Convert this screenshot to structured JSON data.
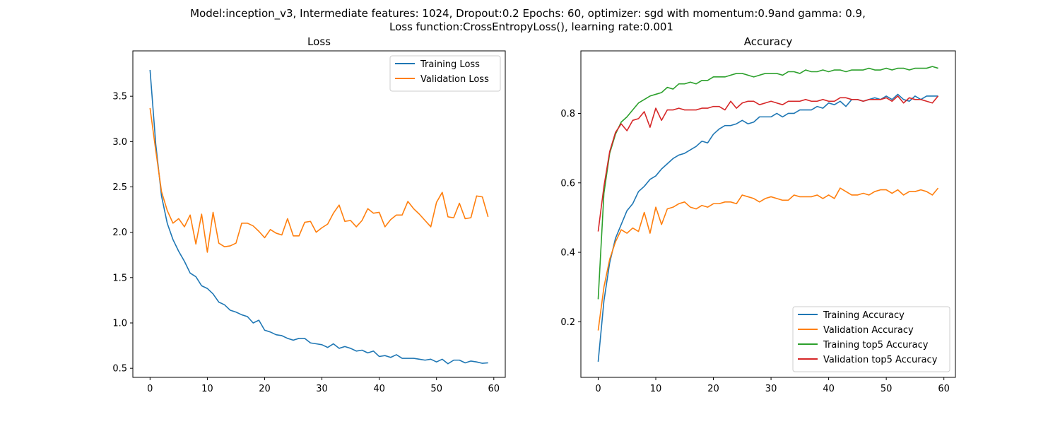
{
  "figure": {
    "suptitle_line1": "Model:inception_v3, Intermediate features: 1024, Dropout:0.2 Epochs: 60, optimizer: sgd with momentum:0.9and gamma: 0.9,",
    "suptitle_line2": "Loss function:CrossEntropyLoss(), learning rate:0.001"
  },
  "colors": {
    "blue": "#1f77b4",
    "orange": "#ff7f0e",
    "green": "#2ca02c",
    "red": "#d62728"
  },
  "chart_data": [
    {
      "type": "line",
      "title": "Loss",
      "xlabel": "",
      "ylabel": "",
      "xlim": [
        -3,
        62
      ],
      "ylim": [
        0.4,
        4.0
      ],
      "xticks": [
        0,
        10,
        20,
        30,
        40,
        50,
        60
      ],
      "yticks": [
        0.5,
        1.0,
        1.5,
        2.0,
        2.5,
        3.0,
        3.5
      ],
      "ytick_labels": [
        "0.5",
        "1.0",
        "1.5",
        "2.0",
        "2.5",
        "3.0",
        "3.5"
      ],
      "grid": false,
      "legend": "upper-right",
      "series": [
        {
          "name": "Training Loss",
          "color": "#1f77b4",
          "values": [
            3.79,
            2.97,
            2.4,
            2.1,
            1.92,
            1.79,
            1.68,
            1.55,
            1.51,
            1.41,
            1.38,
            1.32,
            1.23,
            1.2,
            1.14,
            1.12,
            1.09,
            1.07,
            1.0,
            1.03,
            0.92,
            0.9,
            0.87,
            0.86,
            0.83,
            0.81,
            0.83,
            0.83,
            0.78,
            0.77,
            0.76,
            0.73,
            0.77,
            0.72,
            0.74,
            0.72,
            0.69,
            0.7,
            0.67,
            0.69,
            0.63,
            0.64,
            0.62,
            0.65,
            0.61,
            0.61,
            0.61,
            0.6,
            0.59,
            0.6,
            0.57,
            0.6,
            0.55,
            0.59,
            0.59,
            0.56,
            0.58,
            0.57,
            0.555,
            0.56
          ]
        },
        {
          "name": "Validation Loss",
          "color": "#ff7f0e",
          "values": [
            3.37,
            2.9,
            2.45,
            2.24,
            2.1,
            2.15,
            2.06,
            2.19,
            1.87,
            2.2,
            1.78,
            2.22,
            1.88,
            1.84,
            1.85,
            1.88,
            2.1,
            2.1,
            2.07,
            2.01,
            1.94,
            2.03,
            1.99,
            1.97,
            2.15,
            1.96,
            1.96,
            2.11,
            2.12,
            2.0,
            2.05,
            2.09,
            2.21,
            2.3,
            2.12,
            2.13,
            2.06,
            2.13,
            2.26,
            2.21,
            2.22,
            2.06,
            2.14,
            2.19,
            2.19,
            2.34,
            2.26,
            2.2,
            2.13,
            2.06,
            2.33,
            2.44,
            2.17,
            2.16,
            2.32,
            2.15,
            2.16,
            2.4,
            2.39,
            2.17
          ]
        }
      ]
    },
    {
      "type": "line",
      "title": "Accuracy",
      "xlabel": "",
      "ylabel": "",
      "xlim": [
        -3,
        62
      ],
      "ylim": [
        0.04,
        0.98
      ],
      "xticks": [
        0,
        10,
        20,
        30,
        40,
        50,
        60
      ],
      "yticks": [
        0.2,
        0.4,
        0.6,
        0.8
      ],
      "ytick_labels": [
        "0.2",
        "0.4",
        "0.6",
        "0.8"
      ],
      "grid": false,
      "legend": "lower-right",
      "series": [
        {
          "name": "Training Accuracy",
          "color": "#1f77b4",
          "values": [
            0.085,
            0.26,
            0.37,
            0.44,
            0.48,
            0.52,
            0.54,
            0.575,
            0.59,
            0.61,
            0.62,
            0.64,
            0.655,
            0.67,
            0.68,
            0.685,
            0.695,
            0.705,
            0.72,
            0.715,
            0.74,
            0.755,
            0.765,
            0.765,
            0.77,
            0.78,
            0.77,
            0.775,
            0.79,
            0.79,
            0.79,
            0.8,
            0.79,
            0.8,
            0.8,
            0.81,
            0.81,
            0.81,
            0.82,
            0.815,
            0.83,
            0.825,
            0.835,
            0.82,
            0.84,
            0.84,
            0.835,
            0.84,
            0.845,
            0.84,
            0.85,
            0.84,
            0.855,
            0.84,
            0.835,
            0.85,
            0.84,
            0.85,
            0.85,
            0.85
          ]
        },
        {
          "name": "Validation Accuracy",
          "color": "#ff7f0e",
          "values": [
            0.175,
            0.3,
            0.38,
            0.43,
            0.465,
            0.455,
            0.47,
            0.46,
            0.515,
            0.455,
            0.53,
            0.48,
            0.525,
            0.53,
            0.54,
            0.545,
            0.53,
            0.525,
            0.535,
            0.53,
            0.54,
            0.54,
            0.545,
            0.545,
            0.54,
            0.565,
            0.56,
            0.555,
            0.545,
            0.555,
            0.56,
            0.555,
            0.55,
            0.55,
            0.565,
            0.56,
            0.56,
            0.56,
            0.565,
            0.555,
            0.565,
            0.555,
            0.585,
            0.575,
            0.565,
            0.565,
            0.57,
            0.565,
            0.575,
            0.58,
            0.58,
            0.57,
            0.58,
            0.565,
            0.575,
            0.575,
            0.58,
            0.575,
            0.565,
            0.585
          ]
        },
        {
          "name": "Training top5 Accuracy",
          "color": "#2ca02c",
          "values": [
            0.265,
            0.57,
            0.685,
            0.74,
            0.775,
            0.79,
            0.81,
            0.83,
            0.84,
            0.85,
            0.855,
            0.86,
            0.875,
            0.87,
            0.885,
            0.885,
            0.89,
            0.885,
            0.895,
            0.895,
            0.905,
            0.905,
            0.905,
            0.91,
            0.915,
            0.915,
            0.91,
            0.905,
            0.91,
            0.915,
            0.915,
            0.915,
            0.91,
            0.92,
            0.92,
            0.915,
            0.925,
            0.92,
            0.92,
            0.925,
            0.92,
            0.925,
            0.925,
            0.92,
            0.925,
            0.925,
            0.925,
            0.93,
            0.925,
            0.925,
            0.93,
            0.925,
            0.93,
            0.93,
            0.925,
            0.93,
            0.93,
            0.93,
            0.935,
            0.93
          ]
        },
        {
          "name": "Validation top5 Accuracy",
          "color": "#d62728",
          "values": [
            0.46,
            0.59,
            0.69,
            0.745,
            0.77,
            0.75,
            0.78,
            0.785,
            0.805,
            0.76,
            0.815,
            0.78,
            0.81,
            0.81,
            0.815,
            0.81,
            0.81,
            0.81,
            0.815,
            0.815,
            0.82,
            0.82,
            0.81,
            0.835,
            0.815,
            0.83,
            0.835,
            0.835,
            0.825,
            0.83,
            0.835,
            0.83,
            0.825,
            0.835,
            0.835,
            0.835,
            0.84,
            0.835,
            0.835,
            0.84,
            0.835,
            0.835,
            0.845,
            0.845,
            0.84,
            0.84,
            0.835,
            0.84,
            0.84,
            0.84,
            0.845,
            0.835,
            0.85,
            0.83,
            0.845,
            0.84,
            0.84,
            0.835,
            0.83,
            0.85
          ]
        }
      ]
    }
  ]
}
